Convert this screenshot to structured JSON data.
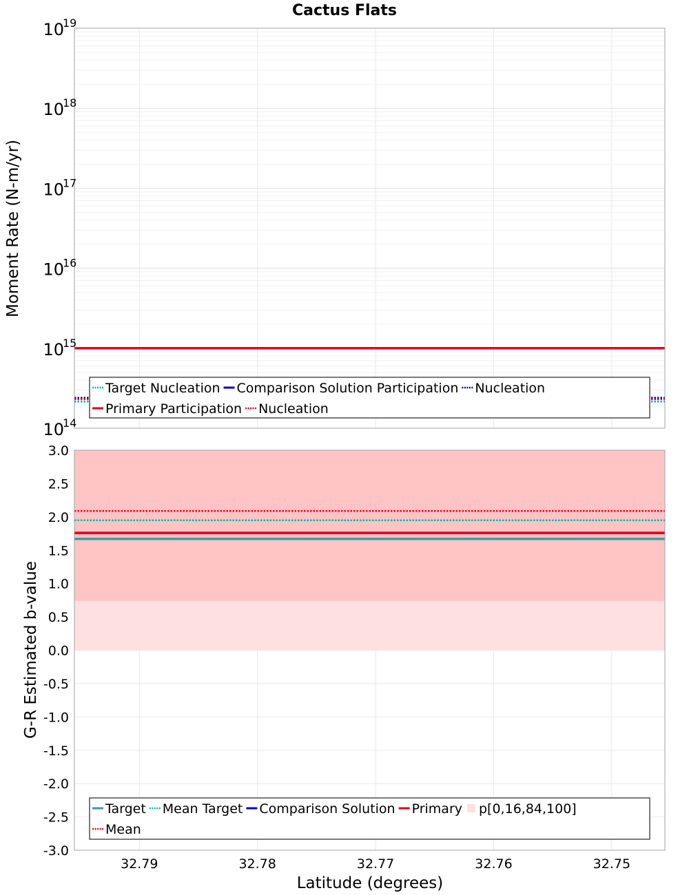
{
  "chart_data": [
    {
      "type": "line",
      "title": "Cactus Flats",
      "xlabel": "",
      "ylabel": "Moment Rate (N-m/yr)",
      "yscale": "log",
      "ylim": [
        100000000000000.0,
        1e+19
      ],
      "xlim": [
        32.7955,
        32.7455
      ],
      "x_reversed": true,
      "grid": true,
      "y_ticks": [
        {
          "base": "10",
          "exp": "14",
          "value": 100000000000000.0
        },
        {
          "base": "10",
          "exp": "15",
          "value": 1000000000000000.0
        },
        {
          "base": "10",
          "exp": "16",
          "value": 1e+16
        },
        {
          "base": "10",
          "exp": "17",
          "value": 1e+17
        },
        {
          "base": "10",
          "exp": "18",
          "value": 1e+18
        },
        {
          "base": "10",
          "exp": "19",
          "value": 1e+19
        }
      ],
      "series": [
        {
          "name": "Target Nucleation",
          "style": "dotted",
          "color": "#00b2b2",
          "x": [
            32.7955,
            32.7455
          ],
          "y": [
            215000000000000.0,
            215000000000000.0
          ]
        },
        {
          "name": "Comparison Solution Participation",
          "style": "solid",
          "color": "#0000cc",
          "x": [
            32.7955,
            32.7455
          ],
          "y": [
            1000000000000000.0,
            1000000000000000.0
          ]
        },
        {
          "name": "Nucleation",
          "style": "dotted",
          "color": "#00008b",
          "x": [
            32.7955,
            32.7455
          ],
          "y": [
            240000000000000.0,
            240000000000000.0
          ]
        },
        {
          "name": "Primary Participation",
          "style": "solid",
          "color": "#e8001e",
          "x": [
            32.7955,
            32.7455
          ],
          "y": [
            1000000000000000.0,
            1000000000000000.0
          ]
        },
        {
          "name": "Nucleation",
          "style": "dotted",
          "color": "#e8001e",
          "x": [
            32.7955,
            32.7455
          ],
          "y": [
            230000000000000.0,
            230000000000000.0
          ]
        }
      ],
      "legend_rows": [
        [
          0,
          1,
          2
        ],
        [
          3,
          4
        ]
      ],
      "legend_position": "bottom-left"
    },
    {
      "type": "line",
      "title": "",
      "xlabel": "Latitude (degrees)",
      "ylabel": "G-R Estimated b-value",
      "ylim": [
        -3.0,
        3.0
      ],
      "xlim": [
        32.7955,
        32.7455
      ],
      "x_reversed": true,
      "grid": true,
      "x_ticks": [
        {
          "label": "32.79",
          "value": 32.79
        },
        {
          "label": "32.78",
          "value": 32.78
        },
        {
          "label": "32.77",
          "value": 32.77
        },
        {
          "label": "32.76",
          "value": 32.76
        },
        {
          "label": "32.75",
          "value": 32.75
        }
      ],
      "y_ticks": [
        "3.0",
        "2.5",
        "2.0",
        "1.5",
        "1.0",
        "0.5",
        "0.0",
        "-0.5",
        "-1.0",
        "-1.5",
        "-2.0",
        "-2.5",
        "-3.0"
      ],
      "bands": [
        {
          "name": "p[0,16,84,100]",
          "range": "0-100",
          "y": [
            0.0,
            3.0
          ],
          "color": "#ffe0e0"
        },
        {
          "name": "p[0,16,84,100]",
          "range": "16-84",
          "y": [
            0.74,
            3.0
          ],
          "color": "#ffc4c4"
        }
      ],
      "series": [
        {
          "name": "Target",
          "style": "solid",
          "color": "#3a9e9e",
          "x": [
            32.7955,
            32.7455
          ],
          "y": [
            1.67,
            1.67
          ]
        },
        {
          "name": "Mean Target",
          "style": "dotted",
          "color": "#00b2b2",
          "x": [
            32.7955,
            32.7455
          ],
          "y": [
            1.95,
            1.95
          ]
        },
        {
          "name": "Comparison Solution",
          "style": "solid",
          "color": "#0000cc",
          "x": [
            32.7955,
            32.7455
          ],
          "y": [
            1.76,
            1.76
          ]
        },
        {
          "name": "Primary",
          "style": "solid",
          "color": "#e8001e",
          "x": [
            32.7955,
            32.7455
          ],
          "y": [
            1.76,
            1.76
          ]
        },
        {
          "name": "Mean",
          "style": "dotted",
          "color": "#e8001e",
          "x": [
            32.7955,
            32.7455
          ],
          "y": [
            2.09,
            2.09
          ]
        }
      ],
      "legend_entries": [
        {
          "name": "Target",
          "style": "solid",
          "color": "#3a9e9e"
        },
        {
          "name": "Mean Target",
          "style": "dotted",
          "color": "#00b2b2"
        },
        {
          "name": "Comparison Solution",
          "style": "solid",
          "color": "#0000cc"
        },
        {
          "name": "Primary",
          "style": "solid",
          "color": "#e8001e"
        },
        {
          "name": "p[0,16,84,100]",
          "style": "patch",
          "color": "#ffe0e0"
        },
        {
          "name": "Mean",
          "style": "dotted",
          "color": "#e8001e"
        }
      ],
      "legend_rows": [
        [
          0,
          1,
          2,
          3,
          4
        ],
        [
          5
        ]
      ],
      "legend_position": "bottom-left"
    }
  ]
}
